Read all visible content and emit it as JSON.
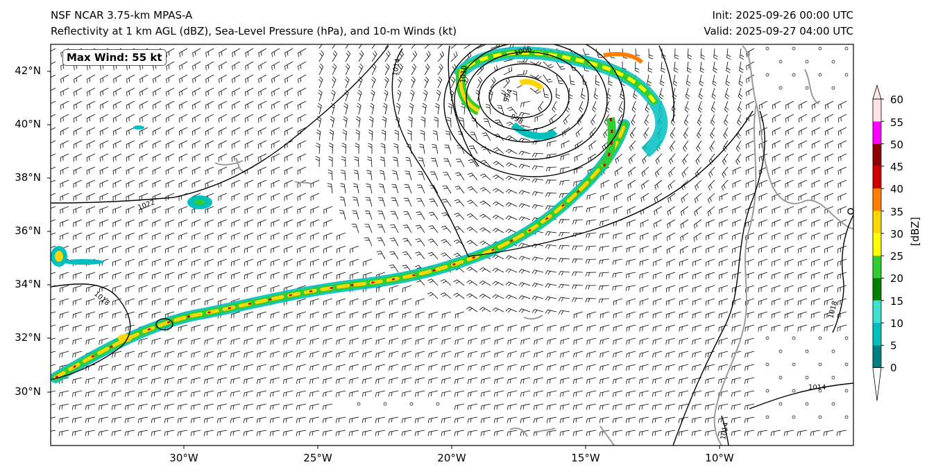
{
  "header": {
    "title_line1": "NSF NCAR 3.75-km MPAS-A",
    "title_line2": "Reflectivity at 1 km AGL (dBZ), Sea-Level Pressure (hPa), and 10-m Winds (kt)",
    "init": "Init: 2025-09-26 00:00 UTC",
    "valid": "Valid: 2025-09-27 04:00 UTC"
  },
  "map": {
    "max_wind_label": "Max Wind: 55 kt",
    "lat_labels": [
      "42°N",
      "40°N",
      "38°N",
      "36°N",
      "34°N",
      "32°N",
      "30°N"
    ],
    "lon_labels": [
      "30°W",
      "25°W",
      "20°W",
      "15°W",
      "10°W"
    ],
    "isobar_labels": [
      "1022",
      "1018",
      "1018",
      "1014",
      "1014",
      "994",
      "998",
      "1006",
      "1010",
      "1014"
    ]
  },
  "colorbar": {
    "unit": "[dBZ]",
    "ticks": [
      "60",
      "55",
      "50",
      "45",
      "40",
      "35",
      "30",
      "25",
      "20",
      "15",
      "10",
      "5",
      "0"
    ],
    "colors": [
      "#ffe4e1",
      "#ff00ff",
      "#8b0000",
      "#cc0000",
      "#ff7f00",
      "#ffd700",
      "#ffff00",
      "#32cd32",
      "#008000",
      "#40e0d0",
      "#00bfbf",
      "#008080"
    ]
  }
}
